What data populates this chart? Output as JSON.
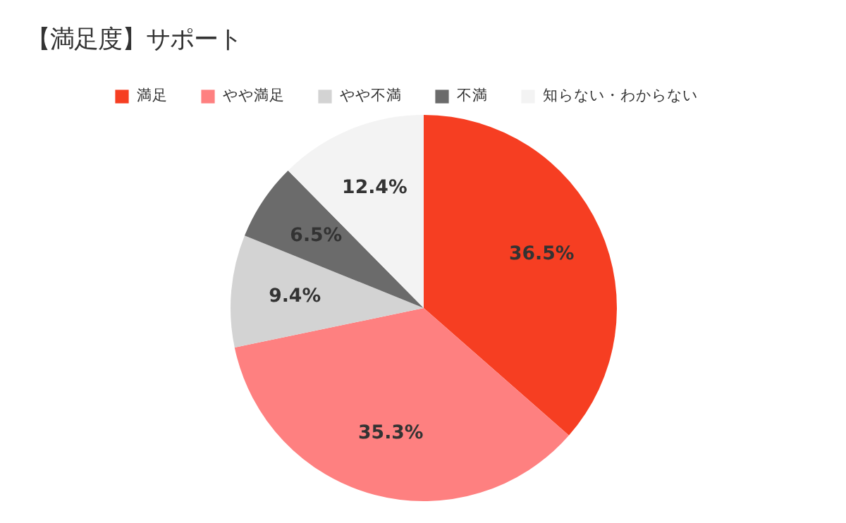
{
  "chart_data": {
    "type": "pie",
    "title": "【満足度】サポート",
    "categories": [
      "満足",
      "やや満足",
      "やや不満",
      "不満",
      "知らない・わからない"
    ],
    "values": [
      36.5,
      35.3,
      9.4,
      6.5,
      12.4
    ],
    "colors": [
      "#f63e22",
      "#fe8080",
      "#d3d3d3",
      "#6b6b6b",
      "#f3f3f3"
    ],
    "value_labels": [
      "36.5%",
      "35.3%",
      "9.4%",
      "6.5%",
      "12.4%"
    ],
    "legend": "top"
  }
}
